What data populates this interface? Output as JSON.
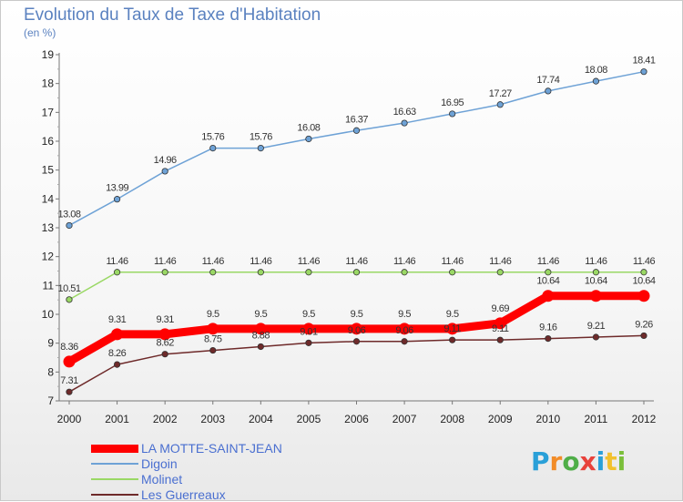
{
  "title": "Evolution du Taux de Taxe d'Habitation",
  "subtitle": "(en %)",
  "logo": {
    "letters": [
      "P",
      "r",
      "o",
      "x",
      "i",
      "t",
      "i"
    ],
    "colors": [
      "#2aa0d8",
      "#f28c28",
      "#4fae48",
      "#e8423b",
      "#2aa0d8",
      "#f2c12e",
      "#7bbf3a"
    ]
  },
  "chart_data": {
    "type": "line",
    "x": [
      2000,
      2001,
      2002,
      2003,
      2004,
      2005,
      2006,
      2007,
      2008,
      2009,
      2010,
      2011,
      2012
    ],
    "ylim": [
      7,
      19
    ],
    "yticks": [
      7,
      8,
      9,
      10,
      11,
      12,
      13,
      14,
      15,
      16,
      17,
      18,
      19
    ],
    "grid": false,
    "legend_position": "bottom-left",
    "series": [
      {
        "name": "LA MOTTE-SAINT-JEAN",
        "color": "#ff0000",
        "width": 9,
        "values": [
          8.36,
          9.31,
          9.31,
          9.5,
          9.5,
          9.5,
          9.5,
          9.5,
          9.5,
          9.69,
          10.64,
          10.64,
          10.64
        ],
        "labels": [
          "8.36",
          "9.31",
          "9.31",
          "9.5",
          "9.5",
          "9.5",
          "9.5",
          "9.5",
          "9.5",
          "9.69",
          "10.64",
          "10.64",
          "10.64"
        ]
      },
      {
        "name": "Digoin",
        "color": "#6ea2d6",
        "width": 1.5,
        "values": [
          13.08,
          13.99,
          14.96,
          15.76,
          15.76,
          16.08,
          16.37,
          16.63,
          16.95,
          17.27,
          17.74,
          18.08,
          18.41
        ],
        "labels": [
          "13.08",
          "13.99",
          "14.96",
          "15.76",
          "15.76",
          "16.08",
          "16.37",
          "16.63",
          "16.95",
          "17.27",
          "17.74",
          "18.08",
          "18.41"
        ]
      },
      {
        "name": "Molinet",
        "color": "#9ad865",
        "width": 1.5,
        "values": [
          10.51,
          11.46,
          11.46,
          11.46,
          11.46,
          11.46,
          11.46,
          11.46,
          11.46,
          11.46,
          11.46,
          11.46,
          11.46
        ],
        "labels": [
          "10.51",
          "11.46",
          "11.46",
          "11.46",
          "11.46",
          "11.46",
          "11.46",
          "11.46",
          "11.46",
          "11.46",
          "11.46",
          "11.46",
          "11.46"
        ]
      },
      {
        "name": "Les Guerreaux",
        "color": "#6e2a2a",
        "width": 1.5,
        "values": [
          7.31,
          8.26,
          8.62,
          8.75,
          8.88,
          9.01,
          9.06,
          9.06,
          9.11,
          9.11,
          9.16,
          9.21,
          9.26
        ],
        "labels": [
          "7.31",
          "8.26",
          "8.62",
          "8.75",
          "8.88",
          "9.01",
          "9.06",
          "9.06",
          "9.11",
          "9.11",
          "9.16",
          "9.21",
          "9.26"
        ]
      }
    ]
  }
}
